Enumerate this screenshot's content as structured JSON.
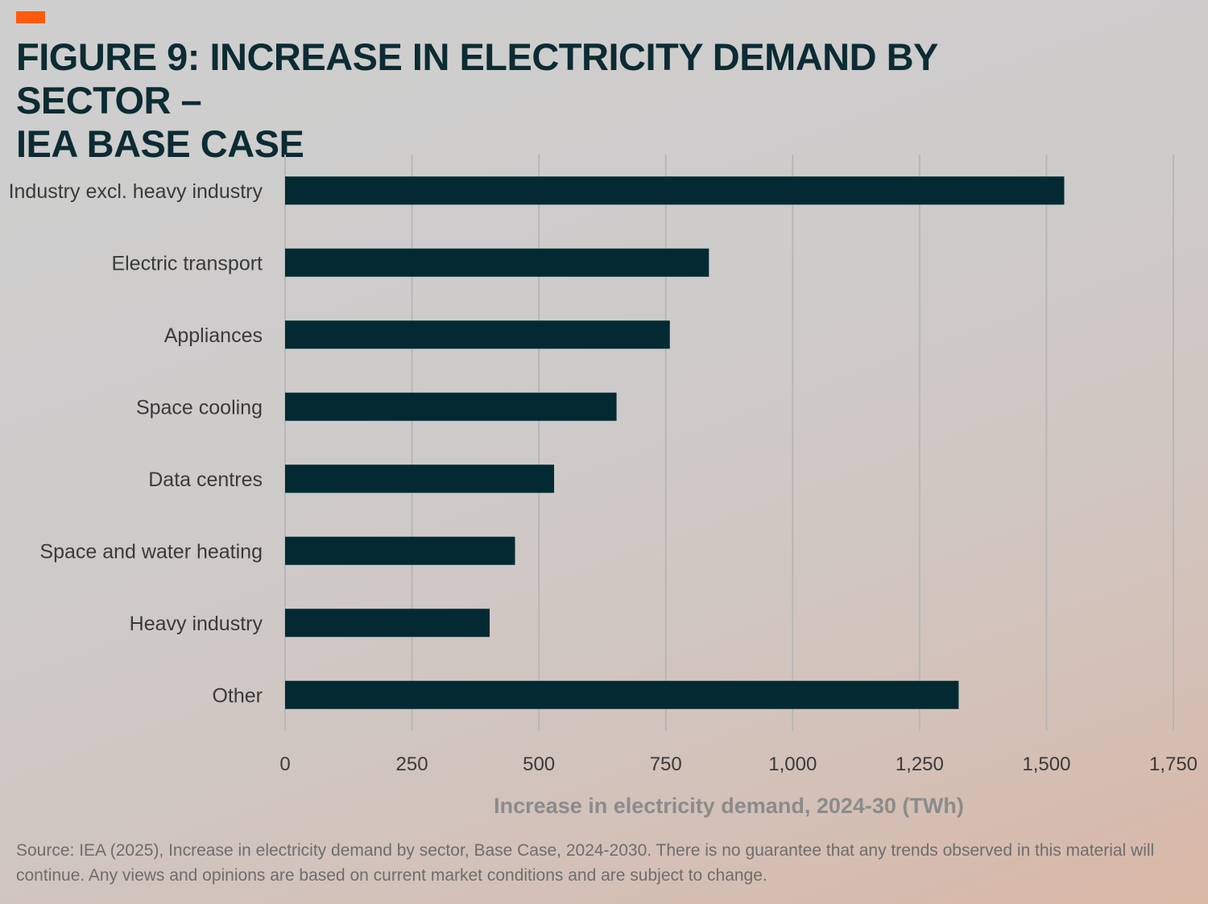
{
  "colors": {
    "accent": "#ff5a0a",
    "bar": "#032a33",
    "title": "#0c2b33",
    "grid": "#b7b7b7",
    "axis_label": "#8b8b8b",
    "tick_label": "#3a3a3a"
  },
  "header": {
    "title_line1": "FIGURE 9: INCREASE IN ELECTRICITY DEMAND BY SECTOR –",
    "title_line2": "IEA BASE CASE"
  },
  "footer": {
    "source_line1": "Source: IEA (2025), Increase in electricity demand by sector, Base Case, 2024-2030. There is no guarantee that any trends observed in this material will",
    "source_line2": "continue. Any views and opinions are based on current market conditions and are subject to change."
  },
  "chart_data": {
    "type": "bar",
    "orientation": "horizontal",
    "title": "FIGURE 9: INCREASE IN ELECTRICITY DEMAND BY SECTOR – IEA BASE CASE",
    "categories": [
      "Industry excl. heavy industry",
      "Electric transport",
      "Appliances",
      "Space cooling",
      "Data centres",
      "Space and water heating",
      "Heavy industry",
      "Other"
    ],
    "values": [
      1535,
      835,
      758,
      653,
      530,
      453,
      403,
      1327
    ],
    "xlabel": "Increase in electricity demand, 2024-30 (TWh)",
    "ylabel": "",
    "xlim": [
      0,
      1750
    ],
    "xticks": [
      0,
      250,
      500,
      750,
      1000,
      1250,
      1500,
      1750
    ],
    "xtick_labels": [
      "0",
      "250",
      "500",
      "750",
      "1,000",
      "1,250",
      "1,500",
      "1,750"
    ],
    "grid": true,
    "legend": "none"
  }
}
